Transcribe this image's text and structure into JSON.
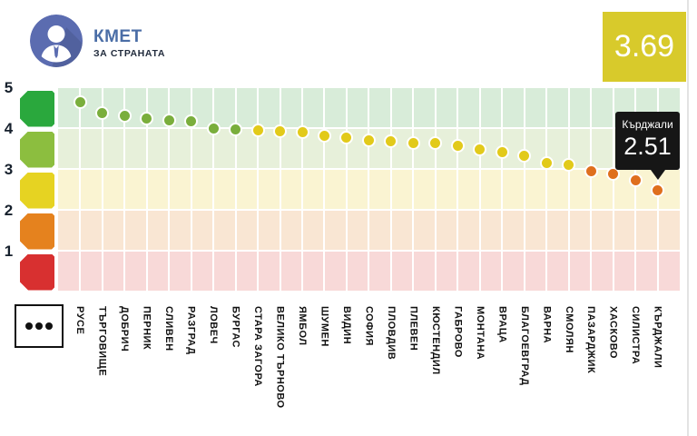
{
  "header": {
    "title": "КМЕТ",
    "subtitle": "ЗА СТРАНАТА",
    "avatar": "person-with-tie-icon"
  },
  "score_badge": {
    "value": "3.69"
  },
  "tooltip": {
    "city": "Кърджали",
    "value": "2.51"
  },
  "y_axis": {
    "labels": [
      "5",
      "4",
      "3",
      "2",
      "1"
    ]
  },
  "legend": {
    "icon": "three-dots-icon"
  },
  "colors": {
    "blocks": [
      "#2aa83d",
      "#8cbe3f",
      "#e6d322",
      "#e5821e",
      "#d83030"
    ],
    "tints": [
      "#d8ecd9",
      "#e7f0da",
      "#faf4d2",
      "#f9e6d3",
      "#f8d9d8"
    ],
    "dots": {
      "4": "#7aae3c",
      "3": "#e2ca1a",
      "2": "#df6f1e"
    },
    "score_bg": "#d8ca2b",
    "accent_blue": "#4a6da6",
    "tooltip_bg": "#161616",
    "avatar_bg": "#5b6cb0"
  },
  "chart_data": {
    "type": "scatter",
    "title": "КМЕТ — ЗА СТРАНАТА",
    "national_average": 3.69,
    "ylim": [
      0,
      5
    ],
    "y_ticks": [
      5,
      4,
      3,
      2,
      1
    ],
    "grid": "vertical-white-lines-per-category",
    "legend_position": "bottom-left",
    "categories": [
      "РУСЕ",
      "ТЪРГОВИЩЕ",
      "ДОБРИЧ",
      "ПЕРНИК",
      "СЛИВЕН",
      "РАЗГРАД",
      "ЛОВЕЧ",
      "БУРГАС",
      "СТАРА ЗАГОРА",
      "ВЕЛИКО ТЪРНОВО",
      "ЯМБОЛ",
      "ШУМЕН",
      "ВИДИН",
      "СОФИЯ",
      "ПЛОВДИВ",
      "ПЛЕВЕН",
      "КЮСТЕНДИЛ",
      "ГАБРОВО",
      "МОНТАНА",
      "ВРАЦА",
      "БЛАГОЕВГРАД",
      "ВАРНА",
      "СМОЛЯН",
      "ПАЗАРДЖИК",
      "ХАСКОВО",
      "СИЛИСТРА",
      "КЪРДЖАЛИ"
    ],
    "values": [
      4.65,
      4.38,
      4.33,
      4.26,
      4.21,
      4.18,
      4.02,
      4.0,
      3.97,
      3.94,
      3.92,
      3.84,
      3.79,
      3.73,
      3.7,
      3.66,
      3.65,
      3.6,
      3.51,
      3.44,
      3.34,
      3.17,
      3.12,
      2.96,
      2.9,
      2.74,
      2.51
    ],
    "highlight": {
      "index": 26,
      "city": "Кърджали",
      "value": 2.51
    }
  }
}
